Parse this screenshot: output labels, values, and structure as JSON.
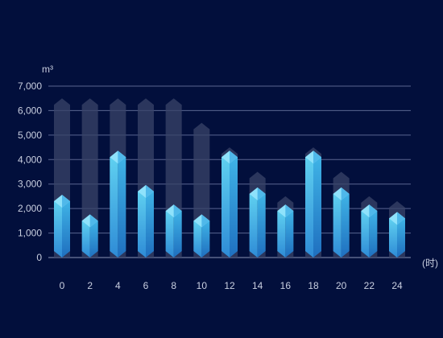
{
  "chart_data": {
    "type": "bar",
    "ylabel": "m³",
    "xlabel": "(时)",
    "ylim": [
      0,
      7000
    ],
    "yticks": [
      0,
      1000,
      2000,
      3000,
      4000,
      5000,
      6000,
      7000
    ],
    "ytick_labels": [
      "0",
      "1,000",
      "2,000",
      "3,000",
      "4,000",
      "5,000",
      "6,000",
      "7,000"
    ],
    "categories": [
      "0",
      "2",
      "4",
      "6",
      "8",
      "10",
      "12",
      "14",
      "16",
      "18",
      "20",
      "22",
      "24"
    ],
    "series": [
      {
        "values": [
          6500,
          6500,
          6500,
          6500,
          6500,
          5500,
          4500,
          3500,
          2500,
          4500,
          3500,
          2500,
          2300
        ]
      },
      {
        "values": [
          2300,
          1500,
          4100,
          2700,
          1900,
          1500,
          4100,
          2600,
          1900,
          4100,
          2600,
          1900,
          1600
        ]
      }
    ],
    "grid": true,
    "colors": {
      "background": "#020f3c",
      "grid": "#5a6590",
      "background_bar": "#3a4468",
      "bar_light": "#5fd0f0",
      "bar_dark": "#2e8bd6",
      "cap_light": "#8fe2fb",
      "cap_dark": "#2a76c4"
    }
  }
}
